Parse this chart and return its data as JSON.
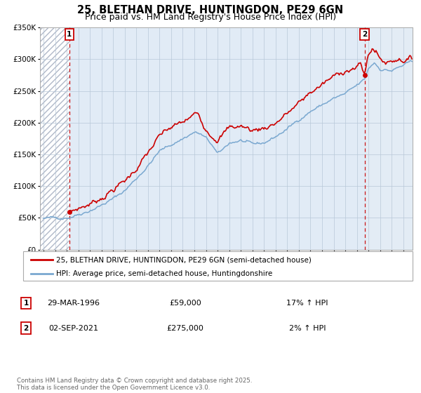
{
  "title": "25, BLETHAN DRIVE, HUNTINGDON, PE29 6GN",
  "subtitle": "Price paid vs. HM Land Registry's House Price Index (HPI)",
  "ylim": [
    0,
    350000
  ],
  "yticks": [
    0,
    50000,
    100000,
    150000,
    200000,
    250000,
    300000,
    350000
  ],
  "ytick_labels": [
    "£0",
    "£50K",
    "£100K",
    "£150K",
    "£200K",
    "£250K",
    "£300K",
    "£350K"
  ],
  "xlim_start": 1993.7,
  "xlim_end": 2025.8,
  "transaction1": {
    "year": 1996.23,
    "price": 59000,
    "label": "1",
    "date": "29-MAR-1996",
    "price_str": "£59,000",
    "hpi_pct": "17% ↑ HPI"
  },
  "transaction2": {
    "year": 2021.67,
    "price": 275000,
    "label": "2",
    "date": "02-SEP-2021",
    "price_str": "£275,000",
    "hpi_pct": "2% ↑ HPI"
  },
  "line_color_red": "#cc0000",
  "line_color_blue": "#7aa8d0",
  "background_color": "#dce8f5",
  "plot_bg": "#e8f0f8",
  "hatch_color": "#b0b8c8",
  "grid_color": "#b8c8d8",
  "legend_line1": "25, BLETHAN DRIVE, HUNTINGDON, PE29 6GN (semi-detached house)",
  "legend_line2": "HPI: Average price, semi-detached house, Huntingdonshire",
  "footer": "Contains HM Land Registry data © Crown copyright and database right 2025.\nThis data is licensed under the Open Government Licence v3.0.",
  "title_fontsize": 10.5,
  "subtitle_fontsize": 9,
  "tick_fontsize": 7.5,
  "legend_fontsize": 7.5
}
